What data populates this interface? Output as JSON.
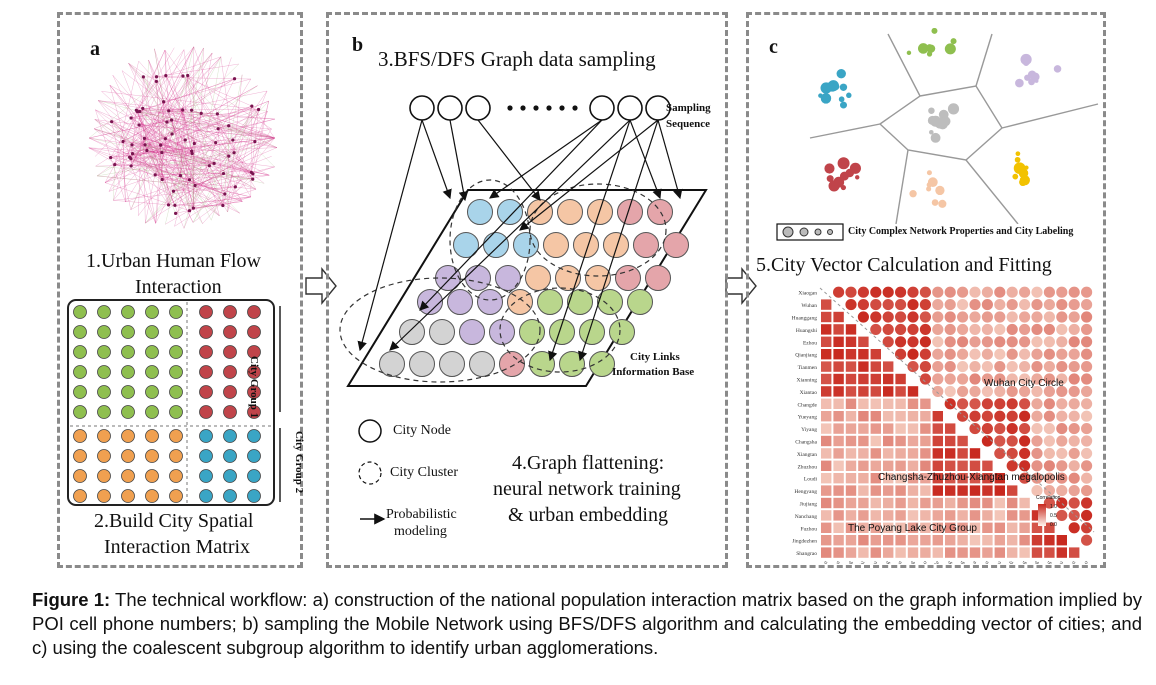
{
  "panel_a": {
    "letter": "a",
    "title_line1": "1.Urban Human Flow",
    "title_line2": "Interaction",
    "group1_label": "City Group 1",
    "group2_label": "City Group 2",
    "bottom_line1": "2.Build City Spatial",
    "bottom_line2": "Interaction Matrix"
  },
  "panel_b": {
    "letter": "b",
    "title": "3.BFS/DFS Graph data sampling",
    "sampling_line1": "Sampling",
    "sampling_line2": "Sequence",
    "base_line1": "City Links",
    "base_line2": "Information Base",
    "legend_node": "City Node",
    "legend_cluster": "City Cluster",
    "legend_prob_line1": "Probabilistic",
    "legend_prob_line2": "modeling",
    "step4_line1": "4.Graph flattening:",
    "step4_line2": "neural network training",
    "step4_line3": "& urban embedding"
  },
  "panel_c": {
    "letter": "c",
    "legend_label": "City Complex Network Properties and City Labeling",
    "title": "5.City Vector Calculation and Fitting",
    "cities": [
      "Xiaogan",
      "Wuhan",
      "Huanggang",
      "Huangshi",
      "Ezhou",
      "Qianjiang",
      "Tianmen",
      "Xianning",
      "Xiantao",
      "Changde",
      "Yueyang",
      "Yiyang",
      "Changsha",
      "Xiangtan",
      "Zhuzhou",
      "Loudi",
      "Hengyang",
      "Jiujiang",
      "Nanchang",
      "Fuzhou",
      "Jingdezhen",
      "Shangrao"
    ],
    "circle_wuhan": "Wuhan City Circle",
    "circle_changsha": "Changsha-Zhuzhou-Xiangtan megalopolis",
    "circle_poyang": "The Poyang Lake City Group",
    "colorbar_title": "Correlation",
    "colorbar_ticks": [
      "1.0",
      "0.5",
      "0.0"
    ]
  },
  "caption": {
    "label": "Figure 1:",
    "text": "The technical workflow: a) construction of the national population interaction matrix based on the graph information implied by POI cell phone numbers; b) sampling the Mobile Network using BFS/DFS algorithm and calculating the embedding vector of cities; and c) using the coalescent subgroup algorithm to identify urban agglomerations."
  },
  "colors": {
    "green": "#8fbf4f",
    "red": "#c0444a",
    "orange": "#f0a050",
    "teal": "#3aa5c5",
    "pink": "#d4378f",
    "heat_high": "#c8281e",
    "heat_low": "#fbe3d5"
  }
}
